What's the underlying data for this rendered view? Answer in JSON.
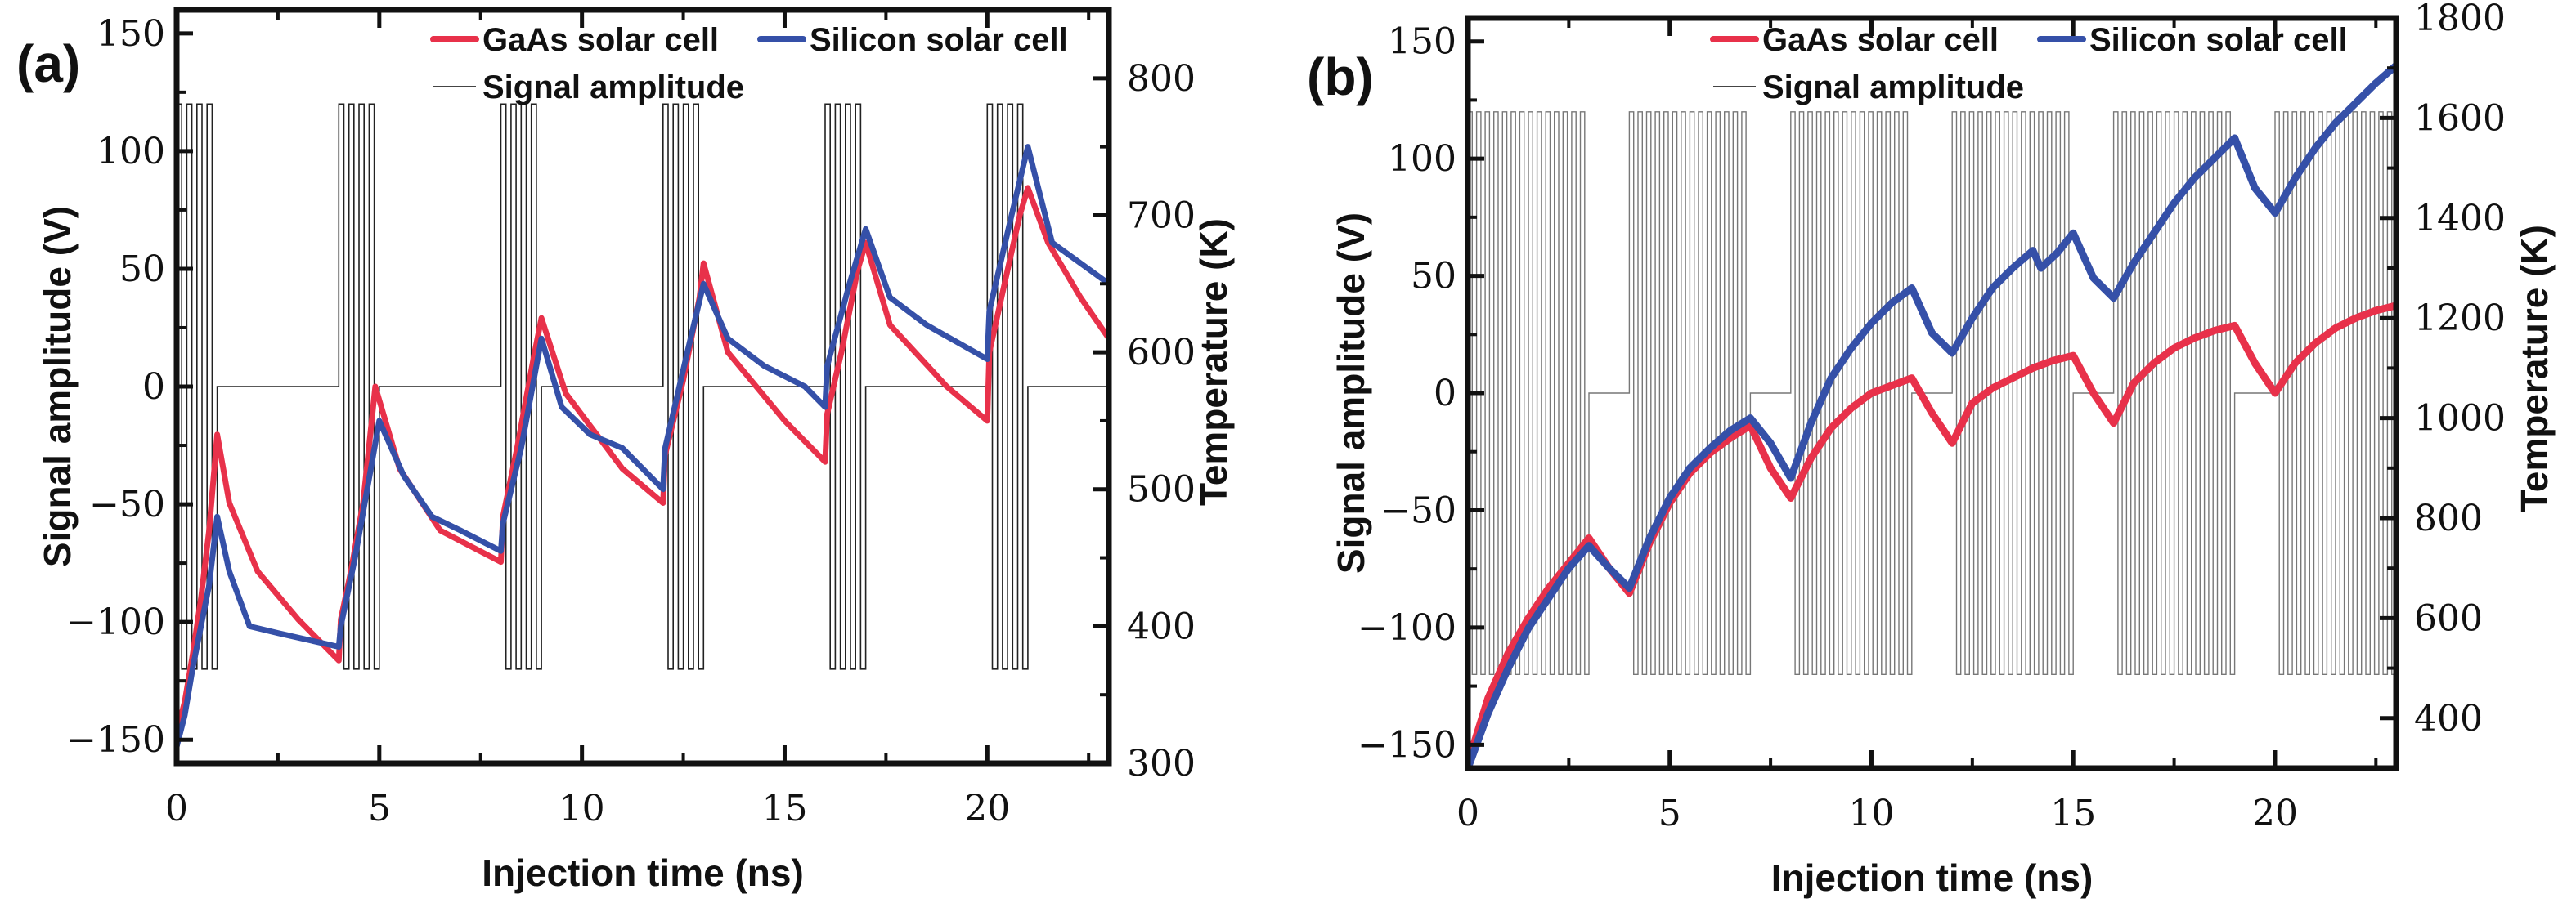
{
  "chart_data": [
    {
      "panel_label": "(a)",
      "type": "line",
      "xlabel": "Injection time (ns)",
      "ylabel_left": "Signal amplitude (V)",
      "ylabel_right": "Temperature (K)",
      "xlim": [
        0,
        23
      ],
      "ylim_left": [
        -160,
        160
      ],
      "ylim_right": [
        300,
        850
      ],
      "x_ticks": [
        0,
        5,
        10,
        15,
        20
      ],
      "y_ticks_left": [
        -150,
        -100,
        -50,
        0,
        50,
        100,
        150
      ],
      "y_ticks_right": [
        300,
        400,
        500,
        600,
        700,
        800
      ],
      "legend": [
        "GaAs solar cell",
        "Silicon solar cell",
        "Signal amplitude"
      ],
      "legend_position": "top-right",
      "grid": false,
      "signal": {
        "amplitude": 120,
        "burst_starts": [
          0,
          4,
          8,
          12,
          16,
          20
        ],
        "burst_duration": 1,
        "cycles_per_burst": 4
      },
      "series": [
        {
          "name": "GaAs solar cell",
          "color": "#e8314a",
          "axis": "right",
          "points": [
            [
              0,
              322
            ],
            [
              0.2,
              345
            ],
            [
              0.4,
              380
            ],
            [
              0.6,
              420
            ],
            [
              0.8,
              470
            ],
            [
              1.0,
              540
            ],
            [
              1.3,
              490
            ],
            [
              2,
              440
            ],
            [
              3,
              405
            ],
            [
              4,
              375
            ],
            [
              4.05,
              405
            ],
            [
              4.3,
              440
            ],
            [
              4.6,
              490
            ],
            [
              4.9,
              575
            ],
            [
              5.5,
              515
            ],
            [
              6.5,
              470
            ],
            [
              8,
              447
            ],
            [
              8.05,
              480
            ],
            [
              8.4,
              530
            ],
            [
              8.8,
              595
            ],
            [
              9,
              625
            ],
            [
              9.6,
              570
            ],
            [
              11,
              515
            ],
            [
              12,
              490
            ],
            [
              12.05,
              525
            ],
            [
              12.5,
              580
            ],
            [
              12.9,
              640
            ],
            [
              13,
              665
            ],
            [
              13.6,
              600
            ],
            [
              15,
              550
            ],
            [
              16,
              520
            ],
            [
              16.05,
              555
            ],
            [
              16.4,
              600
            ],
            [
              16.8,
              660
            ],
            [
              17,
              680
            ],
            [
              17.6,
              620
            ],
            [
              19,
              575
            ],
            [
              20,
              550
            ],
            [
              20.05,
              600
            ],
            [
              20.5,
              660
            ],
            [
              20.8,
              700
            ],
            [
              21,
              720
            ],
            [
              21.5,
              680
            ],
            [
              22.3,
              640
            ],
            [
              23,
              610
            ]
          ]
        },
        {
          "name": "Silicon solar cell",
          "color": "#3550a8",
          "axis": "right",
          "points": [
            [
              0,
              312
            ],
            [
              0.2,
              335
            ],
            [
              0.4,
              370
            ],
            [
              0.6,
              400
            ],
            [
              0.8,
              430
            ],
            [
              1.0,
              480
            ],
            [
              1.3,
              440
            ],
            [
              1.8,
              400
            ],
            [
              2.5,
              395
            ],
            [
              4,
              385
            ],
            [
              4.05,
              400
            ],
            [
              4.4,
              450
            ],
            [
              4.7,
              500
            ],
            [
              5,
              550
            ],
            [
              5.6,
              510
            ],
            [
              6.3,
              480
            ],
            [
              7,
              470
            ],
            [
              8,
              455
            ],
            [
              8.05,
              475
            ],
            [
              8.5,
              530
            ],
            [
              9,
              610
            ],
            [
              9.5,
              560
            ],
            [
              10.2,
              540
            ],
            [
              11,
              530
            ],
            [
              12,
              500
            ],
            [
              12.05,
              530
            ],
            [
              12.6,
              600
            ],
            [
              13,
              650
            ],
            [
              13.6,
              610
            ],
            [
              14.5,
              590
            ],
            [
              15.5,
              575
            ],
            [
              16,
              560
            ],
            [
              16.05,
              590
            ],
            [
              16.6,
              650
            ],
            [
              17,
              690
            ],
            [
              17.6,
              640
            ],
            [
              18.5,
              620
            ],
            [
              20,
              595
            ],
            [
              20.05,
              630
            ],
            [
              20.6,
              700
            ],
            [
              21,
              750
            ],
            [
              21.6,
              680
            ],
            [
              22.3,
              665
            ],
            [
              23,
              650
            ]
          ]
        }
      ]
    },
    {
      "panel_label": "(b)",
      "type": "line",
      "xlabel": "Injection time (ns)",
      "ylabel_left": "Signal amplitude (V)",
      "ylabel_right": "Temperature (K)",
      "xlim": [
        0,
        23
      ],
      "ylim_left": [
        -160,
        160
      ],
      "ylim_right": [
        300,
        1800
      ],
      "x_ticks": [
        0,
        5,
        10,
        15,
        20
      ],
      "y_ticks_left": [
        -150,
        -100,
        -50,
        0,
        50,
        100,
        150
      ],
      "y_ticks_right": [
        400,
        600,
        800,
        1000,
        1200,
        1400,
        1600,
        1800
      ],
      "legend": [
        "GaAs solar cell",
        "Silicon solar cell",
        "Signal amplitude"
      ],
      "legend_position": "top-right",
      "grid": false,
      "signal": {
        "amplitude": 120,
        "burst_starts": [
          0,
          4,
          8,
          12,
          16,
          20
        ],
        "burst_duration": 3,
        "cycles_per_burst": 14
      },
      "series": [
        {
          "name": "GaAs solar cell",
          "color": "#e8314a",
          "axis": "right",
          "points": [
            [
              0,
              310
            ],
            [
              0.5,
              440
            ],
            [
              1,
              530
            ],
            [
              1.5,
              600
            ],
            [
              2,
              660
            ],
            [
              2.5,
              710
            ],
            [
              3,
              760
            ],
            [
              3.5,
              700
            ],
            [
              4,
              650
            ],
            [
              4.5,
              750
            ],
            [
              5,
              830
            ],
            [
              5.5,
              890
            ],
            [
              6,
              930
            ],
            [
              6.5,
              960
            ],
            [
              7,
              985
            ],
            [
              7.5,
              900
            ],
            [
              8,
              840
            ],
            [
              8.5,
              920
            ],
            [
              9,
              980
            ],
            [
              9.5,
              1020
            ],
            [
              10,
              1050
            ],
            [
              10.5,
              1065
            ],
            [
              11,
              1080
            ],
            [
              11.5,
              1010
            ],
            [
              12,
              950
            ],
            [
              12.5,
              1030
            ],
            [
              13,
              1060
            ],
            [
              13.5,
              1080
            ],
            [
              14,
              1100
            ],
            [
              14.5,
              1115
            ],
            [
              15,
              1125
            ],
            [
              15.5,
              1050
            ],
            [
              16,
              990
            ],
            [
              16.5,
              1070
            ],
            [
              17,
              1110
            ],
            [
              17.5,
              1140
            ],
            [
              18,
              1160
            ],
            [
              18.5,
              1175
            ],
            [
              19,
              1185
            ],
            [
              19.5,
              1110
            ],
            [
              20,
              1050
            ],
            [
              20.5,
              1110
            ],
            [
              21,
              1150
            ],
            [
              21.5,
              1180
            ],
            [
              22,
              1200
            ],
            [
              22.5,
              1215
            ],
            [
              23,
              1225
            ]
          ]
        },
        {
          "name": "Silicon solar cell",
          "color": "#3550a8",
          "axis": "right",
          "points": [
            [
              0,
              300
            ],
            [
              0.5,
              410
            ],
            [
              1,
              500
            ],
            [
              1.5,
              580
            ],
            [
              2,
              640
            ],
            [
              2.5,
              700
            ],
            [
              3,
              745
            ],
            [
              3.5,
              700
            ],
            [
              4,
              660
            ],
            [
              4.5,
              760
            ],
            [
              5,
              840
            ],
            [
              5.5,
              900
            ],
            [
              6,
              940
            ],
            [
              6.5,
              975
            ],
            [
              7,
              1000
            ],
            [
              7.5,
              950
            ],
            [
              8,
              880
            ],
            [
              8.5,
              990
            ],
            [
              9,
              1080
            ],
            [
              9.5,
              1140
            ],
            [
              10,
              1190
            ],
            [
              10.5,
              1230
            ],
            [
              11,
              1260
            ],
            [
              11.5,
              1170
            ],
            [
              12,
              1130
            ],
            [
              12.5,
              1200
            ],
            [
              13,
              1260
            ],
            [
              13.5,
              1300
            ],
            [
              14,
              1335
            ],
            [
              14.2,
              1300
            ],
            [
              14.6,
              1330
            ],
            [
              15,
              1370
            ],
            [
              15.5,
              1280
            ],
            [
              16,
              1240
            ],
            [
              16.5,
              1310
            ],
            [
              17,
              1370
            ],
            [
              17.5,
              1430
            ],
            [
              18,
              1480
            ],
            [
              18.5,
              1520
            ],
            [
              19,
              1560
            ],
            [
              19.5,
              1460
            ],
            [
              20,
              1410
            ],
            [
              20.5,
              1480
            ],
            [
              21,
              1540
            ],
            [
              21.5,
              1590
            ],
            [
              22,
              1630
            ],
            [
              22.5,
              1670
            ],
            [
              23,
              1705
            ]
          ]
        }
      ]
    }
  ]
}
